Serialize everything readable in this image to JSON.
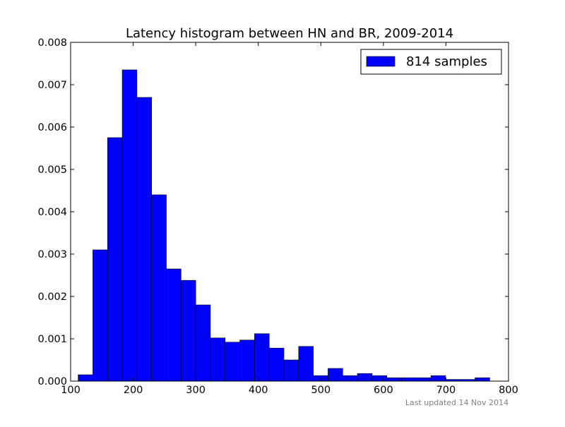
{
  "chart_data": {
    "type": "bar",
    "title": "Latency histogram between HN and BR, 2009-2014",
    "xlabel": "",
    "ylabel": "",
    "xlim": [
      100,
      800
    ],
    "ylim": [
      0,
      0.008
    ],
    "x_ticks": [
      "100",
      "200",
      "300",
      "400",
      "500",
      "600",
      "700",
      "800"
    ],
    "y_ticks": [
      "0.000",
      "0.001",
      "0.002",
      "0.003",
      "0.004",
      "0.005",
      "0.006",
      "0.007",
      "0.008"
    ],
    "grid": false,
    "legend_position": "top-right",
    "bar_color": "#0000ff",
    "edge_color": "#000000",
    "series": [
      {
        "name": "814 samples",
        "bin_edges": [
          112,
          135.5,
          159,
          182.5,
          206,
          229.5,
          253,
          276.5,
          300,
          323.5,
          347,
          370.5,
          394,
          417.5,
          441,
          464.5,
          488,
          511.5,
          535,
          558.5,
          582,
          605.5,
          629,
          652.5,
          676,
          699.5,
          723,
          746.5,
          770
        ],
        "values": [
          0.00015,
          0.0031,
          0.00575,
          0.00735,
          0.0067,
          0.0044,
          0.00265,
          0.00238,
          0.0018,
          0.00102,
          0.00092,
          0.00097,
          0.00112,
          0.00078,
          0.0005,
          0.00082,
          0.00013,
          0.0003,
          0.00013,
          0.00018,
          0.00013,
          8e-05,
          8e-05,
          8e-05,
          0.00013,
          4e-05,
          4e-05,
          8e-05
        ]
      }
    ]
  },
  "footer": {
    "note": "Last updated 14 Nov 2014"
  }
}
